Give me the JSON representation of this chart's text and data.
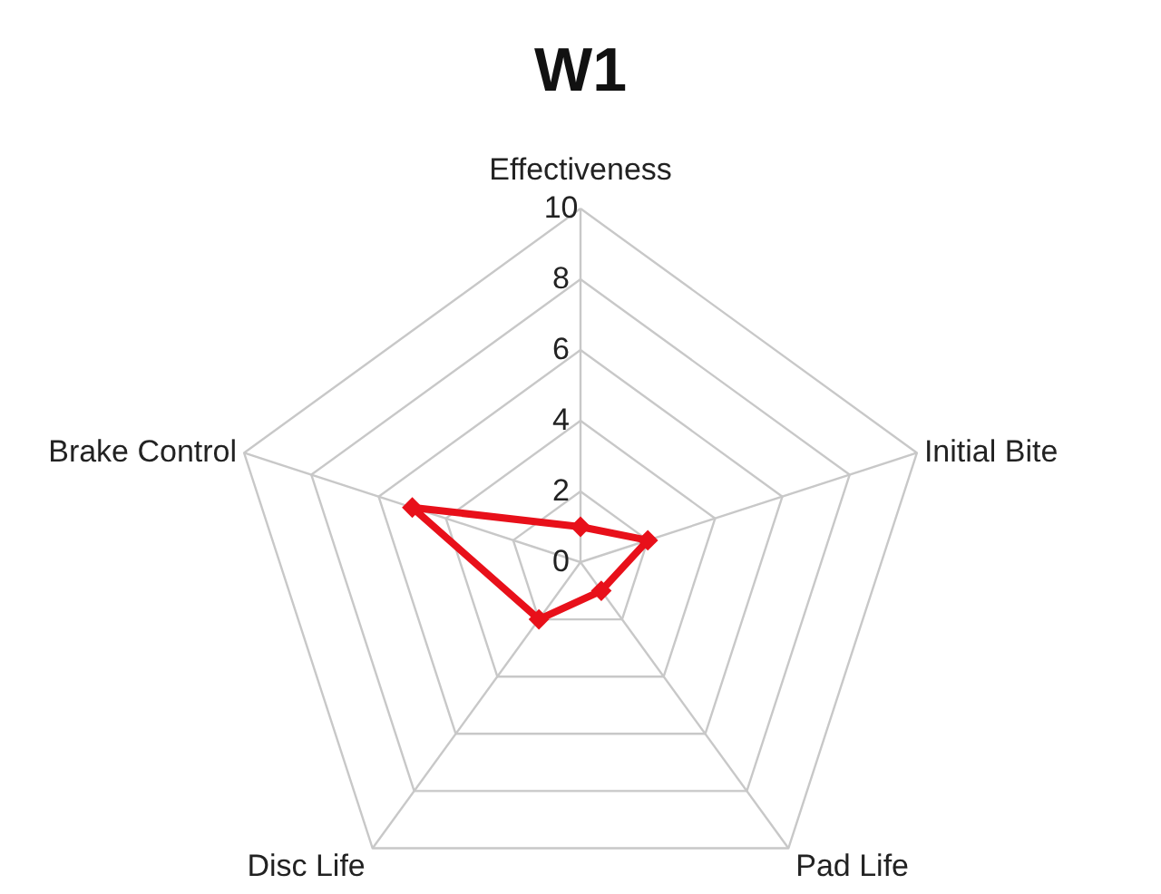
{
  "chart_data": {
    "type": "radar",
    "title": "W1",
    "categories": [
      "Effectiveness",
      "Initial Bite",
      "Pad Life",
      "Disc Life",
      "Brake Control"
    ],
    "series": [
      {
        "color": "#e8101a",
        "values": [
          1,
          2,
          1,
          2,
          5
        ]
      }
    ],
    "ylim": [
      0,
      10
    ],
    "yticks": [
      0,
      2,
      4,
      6,
      8,
      10
    ],
    "grid": true,
    "marker": "diamond",
    "line_style": "solid"
  }
}
